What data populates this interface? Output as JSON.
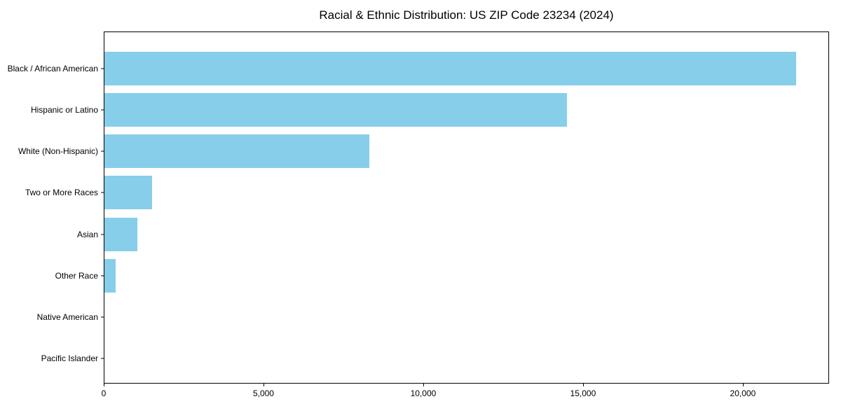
{
  "chart_data": {
    "type": "bar",
    "orientation": "horizontal",
    "title": "Racial & Ethnic Distribution: US ZIP Code 23234 (2024)",
    "categories": [
      "Black / African American",
      "Hispanic or Latino",
      "White (Non-Hispanic)",
      "Two or More Races",
      "Asian",
      "Other Race",
      "Native American",
      "Pacific Islander"
    ],
    "values": [
      21700,
      14500,
      8300,
      1500,
      1030,
      350,
      0,
      0
    ],
    "xlabel": "",
    "ylabel": "",
    "xlim": [
      0,
      22700
    ],
    "x_ticks": [
      {
        "value": 0,
        "label": "0"
      },
      {
        "value": 5000,
        "label": "5,000"
      },
      {
        "value": 10000,
        "label": "10,000"
      },
      {
        "value": 15000,
        "label": "15,000"
      },
      {
        "value": 20000,
        "label": "20,000"
      }
    ],
    "bar_color": "#87CEEB",
    "axis_color": "#000000",
    "background_color": "#ffffff",
    "grid": false,
    "legend": false
  }
}
